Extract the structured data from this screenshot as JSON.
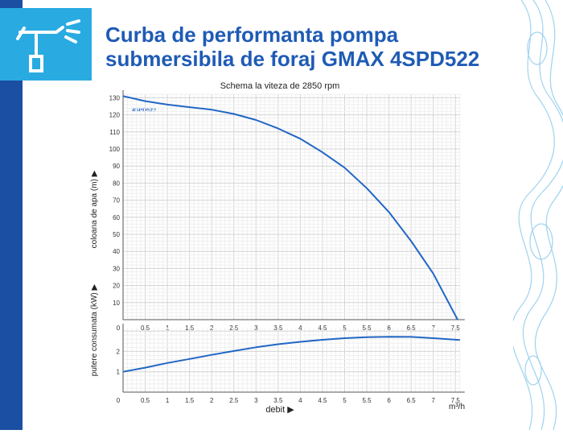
{
  "title_line1": "Curba de performanta pompa",
  "title_line2": "submersibila de foraj GMAX 4SPD522",
  "colors": {
    "accent": "#1f5bb5",
    "logo_bg": "#29abe2",
    "curve": "#2166c4",
    "band": "#1a4fa3"
  },
  "logo_icon": "sprinkler-icon",
  "chart_data": [
    {
      "type": "line",
      "title": "Schema la viteza de 2850 rpm",
      "ylabel": "coloana de apa (m) ▶",
      "xlabel": "",
      "xlim": [
        0,
        7.6
      ],
      "ylim": [
        0,
        132
      ],
      "xticks": [
        "0",
        "0.5",
        "1",
        "1.5",
        "2",
        "2.5",
        "3",
        "3.5",
        "4",
        "4.5",
        "5",
        "5.5",
        "6",
        "6.5",
        "7",
        "7.5"
      ],
      "yticks": [
        "10",
        "20",
        "30",
        "40",
        "50",
        "60",
        "70",
        "80",
        "90",
        "100",
        "110",
        "120",
        "130"
      ],
      "grid": true,
      "series": [
        {
          "name": "4SPD522",
          "x": [
            0,
            0.5,
            1,
            1.5,
            2,
            2.5,
            3,
            3.5,
            4,
            4.5,
            5,
            5.5,
            6,
            6.5,
            7,
            7.55
          ],
          "y": [
            131,
            128,
            126,
            124.5,
            123,
            120.5,
            117,
            112,
            106,
            98,
            89,
            77,
            63,
            46,
            27,
            0
          ]
        }
      ]
    },
    {
      "type": "line",
      "title": "",
      "ylabel": "putere consumata (kW) ▶",
      "xlabel": "debit ▶",
      "xunit": "m³/h",
      "xlim": [
        0,
        7.6
      ],
      "ylim": [
        0,
        3.1
      ],
      "xticks": [
        "0",
        "0.5",
        "1",
        "1.5",
        "2",
        "2.5",
        "3",
        "3.5",
        "4",
        "4.5",
        "5",
        "5.5",
        "6",
        "6.5",
        "7",
        "7.5"
      ],
      "yticks": [
        "1",
        "2"
      ],
      "grid": true,
      "series": [
        {
          "x": [
            0,
            0.5,
            1,
            1.5,
            2,
            2.5,
            3,
            3.5,
            4,
            4.5,
            5,
            5.5,
            6,
            6.5,
            7,
            7.6
          ],
          "y": [
            1.0,
            1.2,
            1.43,
            1.63,
            1.83,
            2.02,
            2.2,
            2.35,
            2.47,
            2.57,
            2.65,
            2.7,
            2.72,
            2.71,
            2.65,
            2.56
          ]
        }
      ]
    }
  ]
}
